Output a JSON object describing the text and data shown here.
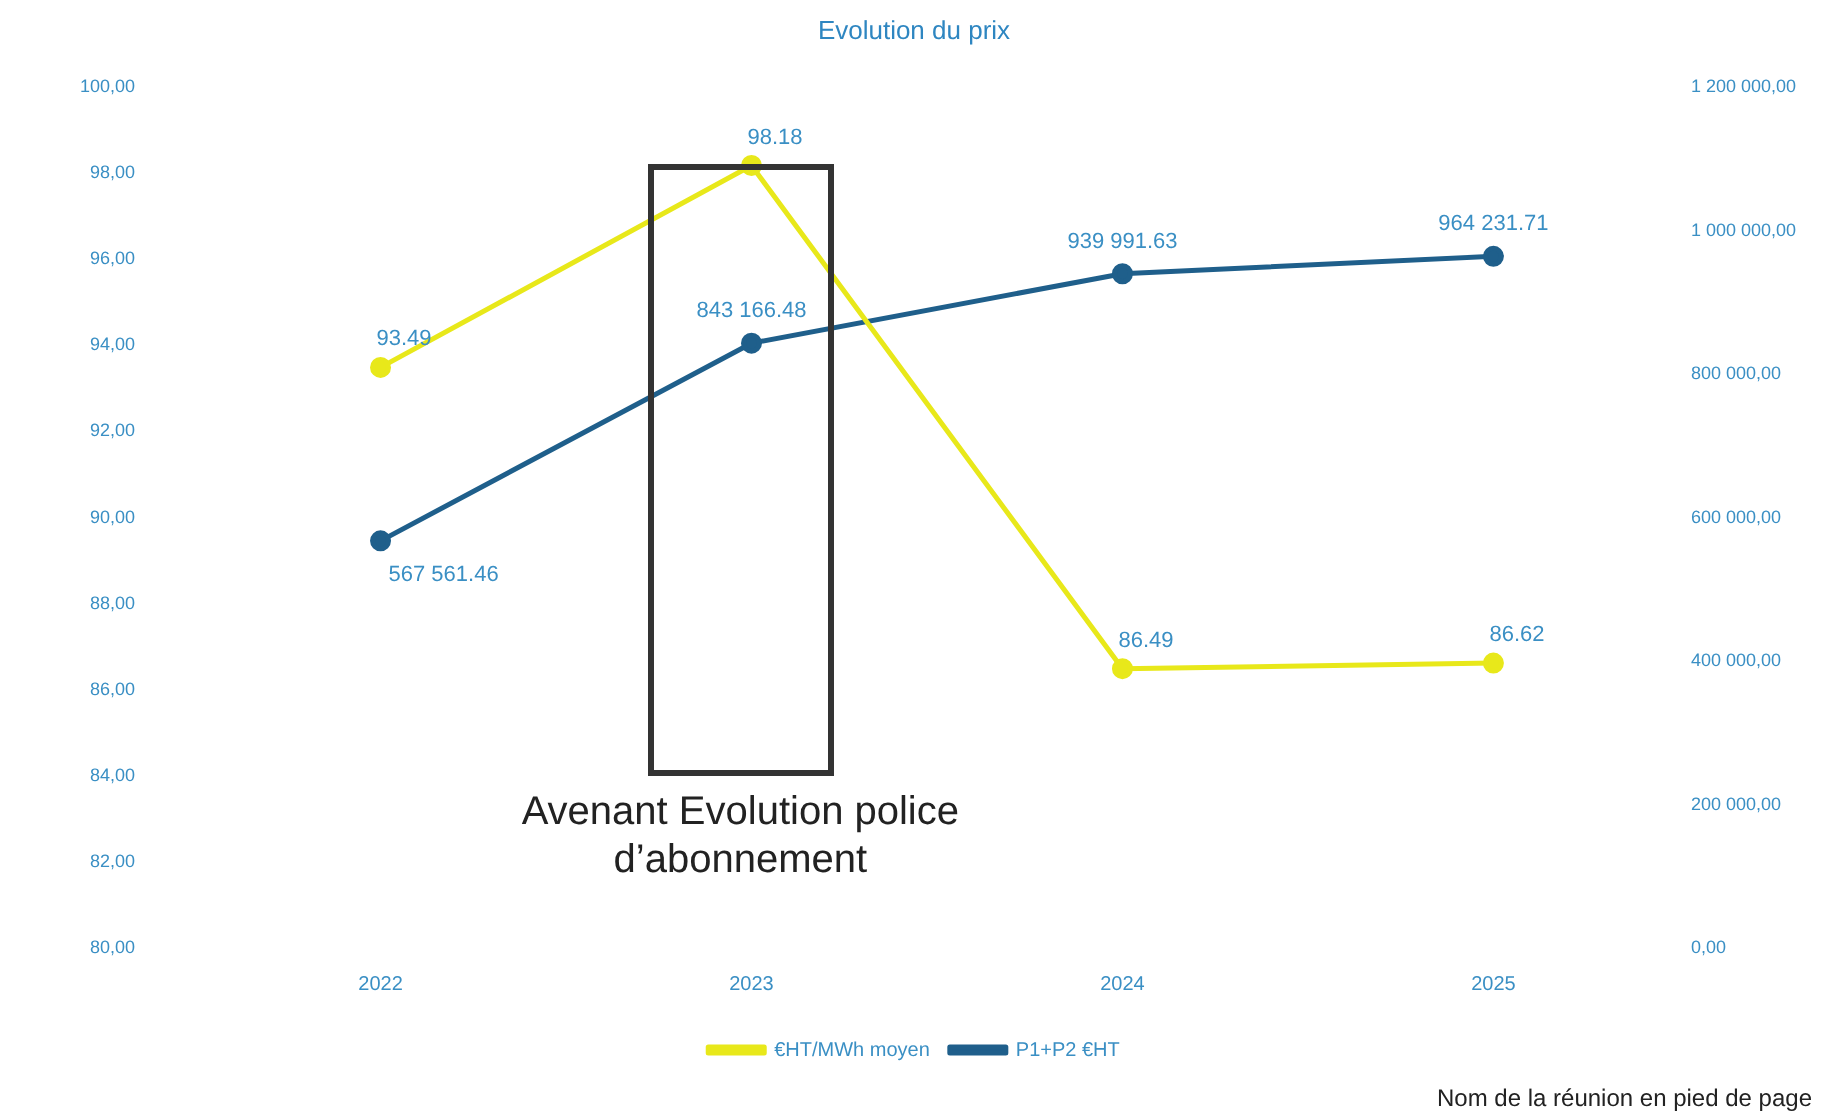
{
  "chart_data": {
    "type": "line",
    "title": "Evolution du prix",
    "categories": [
      "2022",
      "2023",
      "2024",
      "2025"
    ],
    "series": [
      {
        "name": "€HT/MWh moyen",
        "color": "#e8e81a",
        "values": [
          93.49,
          98.18,
          86.49,
          86.62
        ],
        "value_labels": [
          "93.49",
          "98.18",
          "86.49",
          "86.62"
        ]
      },
      {
        "name": "P1+P2 €HT",
        "color": "#1f5f8b",
        "axis": "y2",
        "values": [
          567561.46,
          843166.48,
          939991.63,
          964231.71
        ],
        "value_labels": [
          "567 561.46",
          "843 166.48",
          "939 991.63",
          "964 231.71"
        ]
      }
    ],
    "ylim": [
      80,
      100
    ],
    "yticks": [
      {
        "value": 80,
        "label": "80,00"
      },
      {
        "value": 82,
        "label": "82,00"
      },
      {
        "value": 84,
        "label": "84,00"
      },
      {
        "value": 86,
        "label": "86,00"
      },
      {
        "value": 88,
        "label": "88,00"
      },
      {
        "value": 90,
        "label": "90,00"
      },
      {
        "value": 92,
        "label": "92,00"
      },
      {
        "value": 94,
        "label": "94,00"
      },
      {
        "value": 96,
        "label": "96,00"
      },
      {
        "value": 98,
        "label": "98,00"
      },
      {
        "value": 100,
        "label": "100,00"
      }
    ],
    "y2lim": [
      0,
      1200000
    ],
    "y2ticks": [
      {
        "value": 0,
        "label": "0,00"
      },
      {
        "value": 200000,
        "label": "200 000,00"
      },
      {
        "value": 400000,
        "label": "400 000,00"
      },
      {
        "value": 600000,
        "label": "600 000,00"
      },
      {
        "value": 800000,
        "label": "800 000,00"
      },
      {
        "value": 1000000,
        "label": "1 000 000,00"
      },
      {
        "value": 1200000,
        "label": "1 200 000,00"
      }
    ],
    "annotations": [
      "Avenant Evolution police d’abonnement",
      "Nom de la réunion en pied de page"
    ],
    "legend": "bottom",
    "marker": "circle",
    "grid": false
  }
}
